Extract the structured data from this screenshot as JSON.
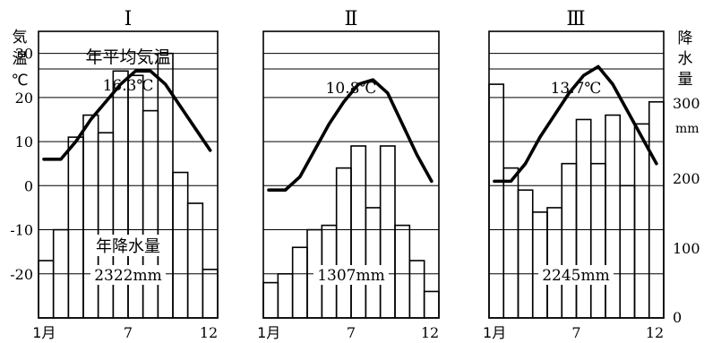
{
  "chart_data": {
    "type": "bar",
    "categories": [
      "1月",
      "2",
      "3",
      "4",
      "5",
      "6",
      "7",
      "8",
      "9",
      "10",
      "11",
      "12"
    ],
    "x_tick_labels": [
      "1月",
      "7",
      "12"
    ],
    "left_axis": {
      "label_chars": [
        "気",
        "温",
        "℃"
      ],
      "ticks": [
        "30",
        "20",
        "10",
        "0",
        "-10",
        "-20"
      ],
      "range": [
        -30,
        35
      ]
    },
    "right_axis": {
      "label_chars": [
        "降",
        "水",
        "量"
      ],
      "ticks": [
        "300",
        "200",
        "100",
        "0"
      ],
      "unit": "mm",
      "range": [
        0,
        325
      ]
    },
    "panel_labels": {
      "annual_temperature_label": "年平均気温",
      "annual_precipitation_label": "年降水量"
    },
    "panels": [
      {
        "id": "I",
        "annual_temperature": "16.3℃",
        "annual_precipitation": "2322mm",
        "temperature": [
          6,
          6,
          10,
          15,
          19,
          23,
          26,
          26,
          23,
          18,
          13,
          8
        ],
        "precipitation": [
          65,
          100,
          205,
          230,
          210,
          280,
          275,
          235,
          300,
          165,
          130,
          55
        ]
      },
      {
        "id": "II",
        "annual_temperature": "10.8℃",
        "annual_precipitation": "1307mm",
        "temperature": [
          -1,
          -1,
          2,
          8,
          14,
          19,
          23,
          24,
          21,
          14,
          7,
          1
        ],
        "precipitation": [
          40,
          50,
          80,
          100,
          105,
          170,
          195,
          125,
          195,
          105,
          65,
          30
        ]
      },
      {
        "id": "III",
        "annual_temperature": "13.7℃",
        "annual_precipitation": "2245mm",
        "temperature": [
          1,
          1,
          5,
          11,
          16,
          21,
          25,
          27,
          23,
          17,
          11,
          5
        ],
        "precipitation": [
          265,
          170,
          145,
          120,
          125,
          175,
          225,
          175,
          230,
          150,
          220,
          245
        ]
      }
    ]
  }
}
